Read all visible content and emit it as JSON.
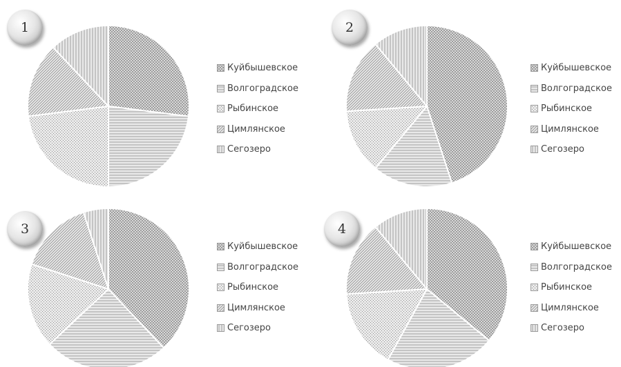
{
  "colors": {
    "slice_fill": "#e9e9e9",
    "slice_line": "#8e8e8e",
    "slice_border": "#ffffff"
  },
  "chart_data": [
    {
      "type": "pie",
      "badge": "1",
      "categories": [
        "Куйбышевское",
        "Волгоградское",
        "Рыбинское",
        "Цимлянское",
        "Сегозеро"
      ],
      "patterns": [
        "diagonal-cross",
        "horizontal",
        "dots",
        "diagonal",
        "vertical"
      ],
      "values": [
        27,
        23,
        23,
        15,
        12
      ]
    },
    {
      "type": "pie",
      "badge": "2",
      "categories": [
        "Куйбышевское",
        "Волгоградское",
        "Рыбинское",
        "Цимлянское",
        "Сегозеро"
      ],
      "patterns": [
        "diagonal-cross",
        "horizontal",
        "dots",
        "diagonal",
        "vertical"
      ],
      "values": [
        45,
        16,
        13,
        15,
        11
      ]
    },
    {
      "type": "pie",
      "badge": "3",
      "categories": [
        "Куйбышевское",
        "Волгоградское",
        "Рыбинское",
        "Цимлянское",
        "Сегозеро"
      ],
      "patterns": [
        "diagonal-cross",
        "horizontal",
        "dots",
        "diagonal",
        "vertical"
      ],
      "values": [
        38,
        25,
        17,
        15,
        5
      ]
    },
    {
      "type": "pie",
      "badge": "4",
      "categories": [
        "Куйбышевское",
        "Волгоградское",
        "Рыбинское",
        "Цимлянское",
        "Сегозеро"
      ],
      "patterns": [
        "diagonal-cross",
        "horizontal",
        "dots",
        "diagonal",
        "vertical"
      ],
      "values": [
        36,
        22,
        16,
        15,
        11
      ]
    }
  ]
}
